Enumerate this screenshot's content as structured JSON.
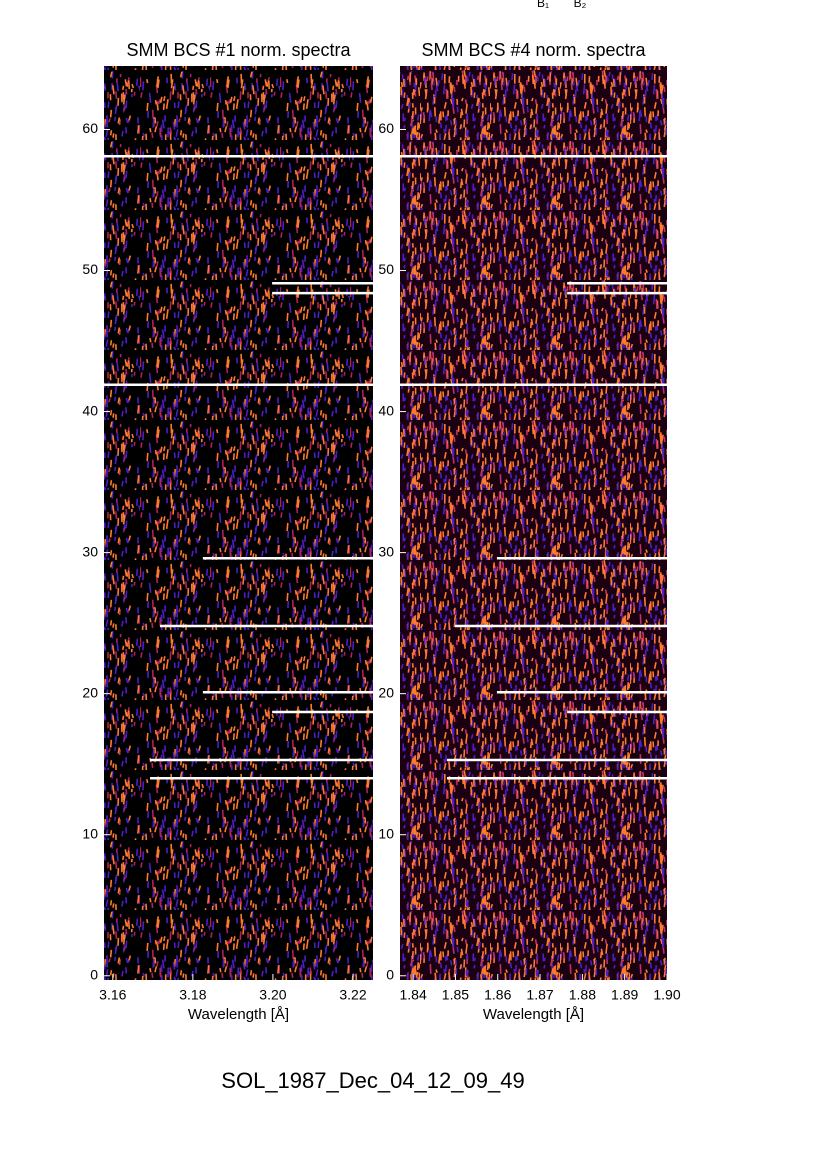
{
  "annotations": [
    "B₁",
    "B₂"
  ],
  "footer": "SOL_1987_Dec_04_12_09_49",
  "chart_data": [
    {
      "type": "heatmap",
      "title": "SMM BCS #1 norm. spectra",
      "x_label": "Wavelength [Å]",
      "xlim": [
        3.1578,
        3.225
      ],
      "xticks": [
        3.16,
        3.18,
        {
          "value": 3.2,
          "label": "3.20"
        },
        3.22
      ],
      "ylim": [
        -0.3,
        64.5
      ],
      "yticks": [
        0,
        10,
        20,
        30,
        40,
        50,
        60
      ],
      "colors": [
        "#000000",
        "#ff7a2e",
        "#4a1fc8",
        "#b0205a"
      ],
      "gap_lines": [
        {
          "y": 58.1,
          "x_start": 3.1578
        },
        {
          "y": 49.1,
          "x_start": 3.1998
        },
        {
          "y": 48.4,
          "x_start": 3.1998
        },
        {
          "y": 41.9,
          "x_start": 3.1578
        },
        {
          "y": 29.6,
          "x_start": 3.1825
        },
        {
          "y": 24.8,
          "x_start": 3.1718
        },
        {
          "y": 20.1,
          "x_start": 3.1825
        },
        {
          "y": 18.7,
          "x_start": 3.1998
        },
        {
          "y": 15.3,
          "x_start": 3.1693
        },
        {
          "y": 14.0,
          "x_start": 3.1693
        }
      ]
    },
    {
      "type": "heatmap",
      "title": "SMM BCS #4 norm. spectra",
      "x_label": "Wavelength [Å]",
      "xlim": [
        1.8369,
        1.9
      ],
      "xticks": [
        1.84,
        1.85,
        1.86,
        1.87,
        1.88,
        1.89,
        {
          "value": 1.9,
          "label": "1.90"
        }
      ],
      "ylim": [
        -0.3,
        64.5
      ],
      "yticks": [
        0,
        10,
        20,
        30,
        40,
        50,
        60
      ],
      "colors": [
        "#1a0010",
        "#ff7a2e",
        "#4a1fc8",
        "#c0306a"
      ],
      "gap_lines": [
        {
          "y": 58.1,
          "x_start": 1.8369
        },
        {
          "y": 49.1,
          "x_start": 1.8764
        },
        {
          "y": 48.4,
          "x_start": 1.8764
        },
        {
          "y": 41.9,
          "x_start": 1.8369
        },
        {
          "y": 29.6,
          "x_start": 1.8598
        },
        {
          "y": 24.8,
          "x_start": 1.8499
        },
        {
          "y": 20.1,
          "x_start": 1.8598
        },
        {
          "y": 18.7,
          "x_start": 1.8764
        },
        {
          "y": 15.3,
          "x_start": 1.848
        },
        {
          "y": 14.0,
          "x_start": 1.848
        }
      ]
    }
  ]
}
